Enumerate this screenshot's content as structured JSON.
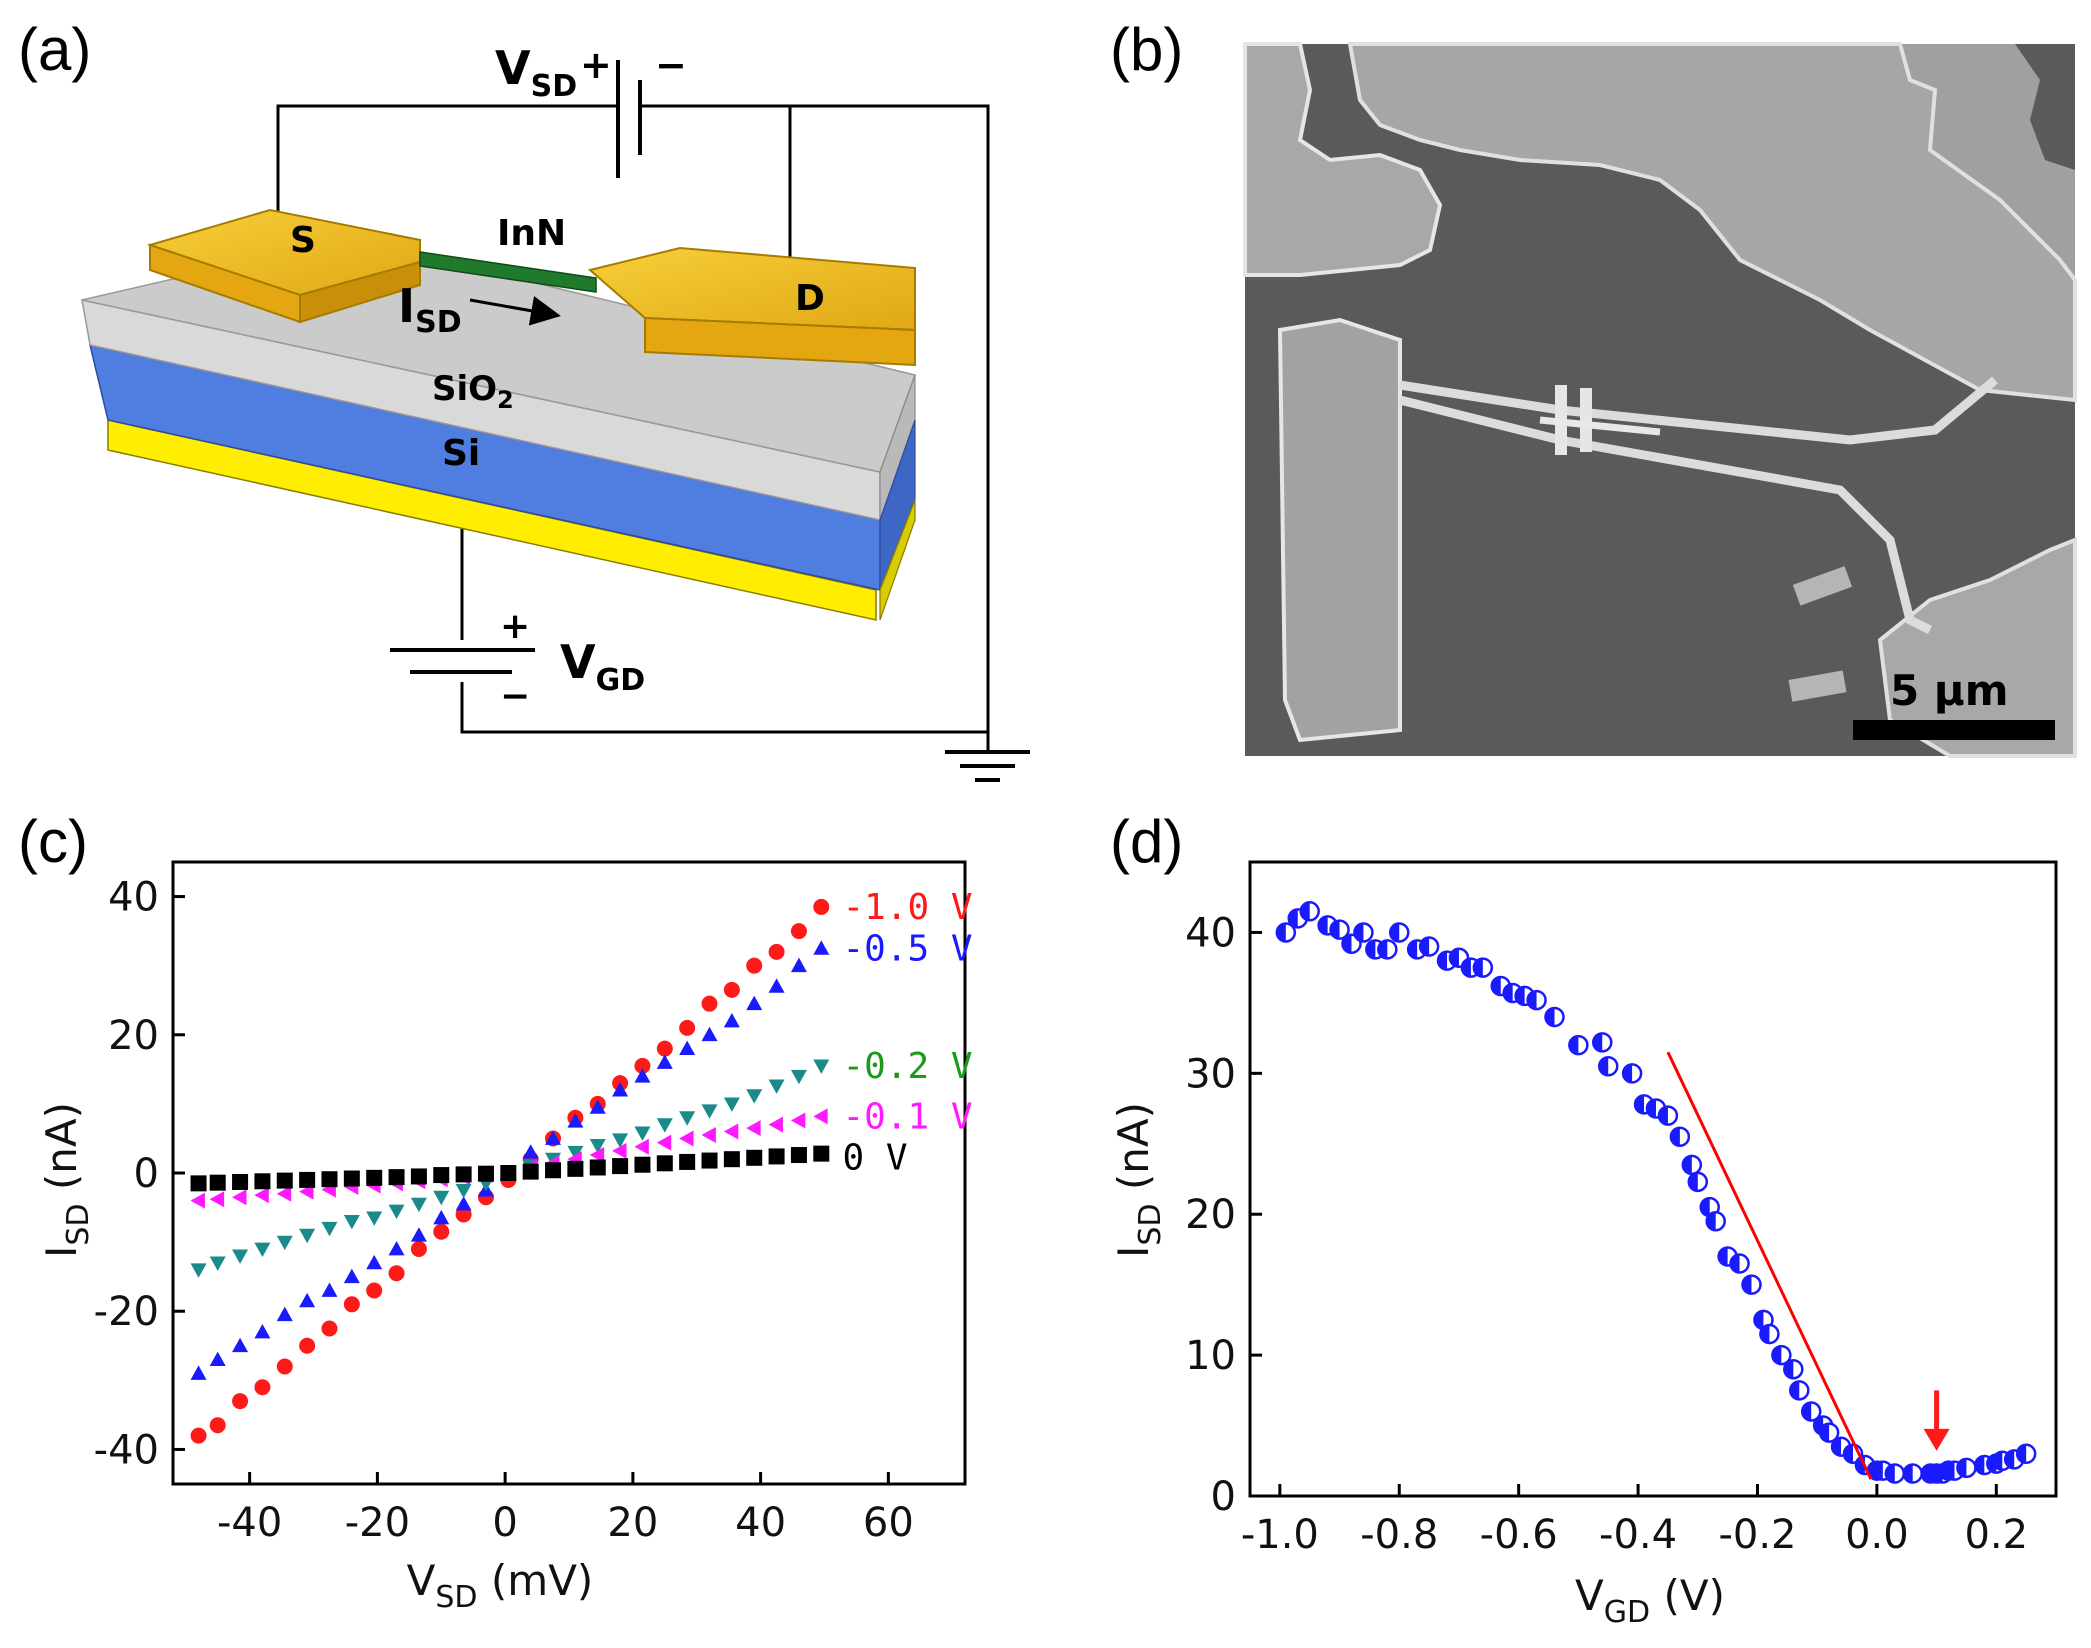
{
  "panels": {
    "a": {
      "label": "(a)",
      "vsd_main": "V",
      "vsd_sub": "SD",
      "vsd_plus": "+",
      "vsd_minus": "−",
      "source": "S",
      "drain": "D",
      "wire": "InN",
      "isd_main": "I",
      "isd_sub": "SD",
      "sio2_main": "SiO",
      "sio2_sub": "2",
      "si": "Si",
      "vgd_main": "V",
      "vgd_sub": "GD",
      "vgd_plus": "+",
      "vgd_minus": "−"
    },
    "b": {
      "label": "(b)",
      "scale_bar": "5 μm"
    },
    "c": {
      "label": "(c)"
    },
    "d": {
      "label": "(d)"
    }
  },
  "colors": {
    "gold": "#f2c21b",
    "gold_dark": "#c8960c",
    "oxide": "#d6d6d6",
    "silicon": "#4f7de0",
    "substrate": "#ffee00",
    "nanowire": "#1f7a2c",
    "fit_line": "#ff0000",
    "arrow": "#ff1a1a"
  },
  "chart_data": [
    {
      "id": "c",
      "type": "scatter",
      "xlabel_main": "V",
      "xlabel_sub": "SD",
      "xlabel_unit": " (mV)",
      "ylabel_main": "I",
      "ylabel_sub": "SD",
      "ylabel_unit": " (nA)",
      "xlim": [
        -52,
        72
      ],
      "ylim": [
        -45,
        45
      ],
      "xticks": [
        -40,
        -20,
        0,
        20,
        40,
        60
      ],
      "yticks": [
        -40,
        -20,
        0,
        20,
        40
      ],
      "series": [
        {
          "name": "-1.0 V",
          "label": "-1.0 V",
          "color": "#ff1a1a",
          "marker": "circle",
          "x": [
            -48,
            -45,
            -41.5,
            -38,
            -34.5,
            -31,
            -27.5,
            -24,
            -20.5,
            -17,
            -13.5,
            -10,
            -6.5,
            -3,
            0.5,
            4,
            7.5,
            11,
            14.5,
            18,
            21.5,
            25,
            28.5,
            32,
            35.5,
            39,
            42.5,
            46,
            49.5
          ],
          "y": [
            -38,
            -36.5,
            -33,
            -31,
            -28,
            -25,
            -22.5,
            -19,
            -17,
            -14.5,
            -11,
            -8.5,
            -6,
            -3.5,
            -1,
            2,
            5,
            8,
            10,
            13,
            15.5,
            18,
            21,
            24.5,
            26.5,
            30,
            32,
            35,
            38.5
          ]
        },
        {
          "name": "-0.5 V",
          "label": "-0.5 V",
          "color": "#1a1aff",
          "marker": "triangle-up",
          "x": [
            -48,
            -45,
            -41.5,
            -38,
            -34.5,
            -31,
            -27.5,
            -24,
            -20.5,
            -17,
            -13.5,
            -10,
            -6.5,
            -3,
            0.5,
            4,
            7.5,
            11,
            14.5,
            18,
            21.5,
            25,
            28.5,
            32,
            35.5,
            39,
            42.5,
            46,
            49.5
          ],
          "y": [
            -29,
            -27,
            -25,
            -23,
            -20.5,
            -18.5,
            -17,
            -15,
            -13,
            -11,
            -9,
            -6.5,
            -4.5,
            -2.5,
            0,
            3,
            5,
            7.5,
            9.5,
            12,
            14,
            16,
            18,
            20,
            22,
            24.5,
            27,
            30,
            32.5
          ]
        },
        {
          "name": "-0.2 V",
          "label": "-0.2 V",
          "color": "#1a8a8a",
          "marker": "triangle-down",
          "x": [
            -48,
            -45,
            -41.5,
            -38,
            -34.5,
            -31,
            -27.5,
            -24,
            -20.5,
            -17,
            -13.5,
            -10,
            -6.5,
            -3,
            0.5,
            4,
            7.5,
            11,
            14.5,
            18,
            21.5,
            25,
            28.5,
            32,
            35.5,
            39,
            42.5,
            46,
            49.5
          ],
          "y": [
            -14,
            -13,
            -12,
            -11,
            -10,
            -9,
            -8,
            -7,
            -6.5,
            -5.5,
            -4.5,
            -3.5,
            -2.5,
            -1.5,
            0,
            1,
            2,
            3,
            4,
            4.8,
            5.8,
            7,
            8,
            9,
            10,
            11.2,
            12.6,
            14,
            15.5
          ]
        },
        {
          "name": "-0.1 V",
          "label": "-0.1 V",
          "color": "#ff19ff",
          "marker": "triangle-left",
          "x": [
            -48,
            -45,
            -41.5,
            -38,
            -34.5,
            -31,
            -27.5,
            -24,
            -20.5,
            -17,
            -13.5,
            -10,
            -6.5,
            -3,
            0.5,
            4,
            7.5,
            11,
            14.5,
            18,
            21.5,
            25,
            28.5,
            32,
            35.5,
            39,
            42.5,
            46,
            49.5
          ],
          "y": [
            -4,
            -3.8,
            -3.5,
            -3.2,
            -3,
            -2.7,
            -2.4,
            -2,
            -1.8,
            -1.5,
            -1.2,
            -0.9,
            -0.6,
            -0.3,
            0,
            0.8,
            1.4,
            2,
            2.6,
            3.2,
            3.8,
            4.4,
            5,
            5.5,
            6,
            6.5,
            7,
            7.6,
            8.2
          ]
        },
        {
          "name": "0 V",
          "label": "0 V",
          "color": "#000000",
          "marker": "square",
          "x": [
            -48,
            -45,
            -41.5,
            -38,
            -34.5,
            -31,
            -27.5,
            -24,
            -20.5,
            -17,
            -13.5,
            -10,
            -6.5,
            -3,
            0.5,
            4,
            7.5,
            11,
            14.5,
            18,
            21.5,
            25,
            28.5,
            32,
            35.5,
            39,
            42.5,
            46,
            49.5
          ],
          "y": [
            -1.5,
            -1.4,
            -1.3,
            -1.2,
            -1.1,
            -1,
            -0.9,
            -0.8,
            -0.7,
            -0.6,
            -0.5,
            -0.3,
            -0.2,
            -0.1,
            0,
            0.2,
            0.4,
            0.6,
            0.8,
            1,
            1.2,
            1.4,
            1.6,
            1.8,
            2,
            2.2,
            2.4,
            2.6,
            2.8
          ]
        }
      ],
      "label_color_neg02": "#1a9a1a"
    },
    {
      "id": "d",
      "type": "scatter",
      "xlabel_main": "V",
      "xlabel_sub": "GD",
      "xlabel_unit": " (V)",
      "ylabel_main": "I",
      "ylabel_sub": "SD",
      "ylabel_unit": " (nA)",
      "xlim": [
        -1.05,
        0.3
      ],
      "ylim": [
        0,
        45
      ],
      "xticks": [
        -1.0,
        -0.8,
        -0.6,
        -0.4,
        -0.2,
        0.0,
        0.2
      ],
      "xtick_labels": [
        "-1.0",
        "-0.8",
        "-0.6",
        "-0.4",
        "-0.2",
        "0.0",
        "0.2"
      ],
      "yticks": [
        0,
        10,
        20,
        30,
        40
      ],
      "series": [
        {
          "name": "ISD vs VGD",
          "color": "#1a1aff",
          "marker": "half-circle",
          "x": [
            -0.99,
            -0.97,
            -0.95,
            -0.92,
            -0.9,
            -0.88,
            -0.86,
            -0.84,
            -0.82,
            -0.8,
            -0.77,
            -0.75,
            -0.72,
            -0.7,
            -0.68,
            -0.66,
            -0.63,
            -0.61,
            -0.59,
            -0.57,
            -0.54,
            -0.5,
            -0.46,
            -0.45,
            -0.41,
            -0.39,
            -0.37,
            -0.35,
            -0.33,
            -0.31,
            -0.3,
            -0.28,
            -0.27,
            -0.25,
            -0.23,
            -0.21,
            -0.19,
            -0.18,
            -0.16,
            -0.14,
            -0.13,
            -0.11,
            -0.09,
            -0.08,
            -0.06,
            -0.04,
            -0.02,
            0.0,
            0.01,
            0.03,
            0.06,
            0.09,
            0.1,
            0.11,
            0.12,
            0.13,
            0.15,
            0.18,
            0.2,
            0.21,
            0.23,
            0.25
          ],
          "y": [
            40,
            41,
            41.5,
            40.5,
            40.2,
            39.2,
            40,
            38.8,
            38.8,
            40,
            38.8,
            39,
            38,
            38.2,
            37.5,
            37.5,
            36.2,
            35.7,
            35.5,
            35.2,
            34,
            32,
            32.2,
            30.5,
            30,
            27.8,
            27.5,
            27,
            25.5,
            23.5,
            22.3,
            20.5,
            19.5,
            17,
            16.5,
            15,
            12.5,
            11.5,
            10,
            9,
            7.5,
            6,
            5,
            4.5,
            3.5,
            3,
            2.2,
            1.8,
            1.8,
            1.6,
            1.6,
            1.6,
            1.6,
            1.6,
            1.8,
            1.8,
            2,
            2.2,
            2.3,
            2.5,
            2.6,
            3
          ]
        }
      ],
      "fit_line": {
        "x": [
          -0.35,
          -0.01
        ],
        "y": [
          31.5,
          1.2
        ]
      },
      "marker_arrow": {
        "x": 0.1,
        "y_from": 7.5,
        "y_to": 3.2
      }
    }
  ]
}
